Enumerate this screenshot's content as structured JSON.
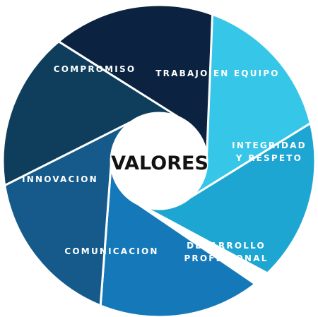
{
  "diagram": {
    "center_title": "VALORES",
    "segments": [
      {
        "id": "trabajo",
        "lines": [
          "TRABAJO EN EQUIPO"
        ],
        "color": "#36c6e8"
      },
      {
        "id": "integridad",
        "lines": [
          "INTEGRIDAD",
          "Y RESPETO"
        ],
        "color": "#1ea6d3"
      },
      {
        "id": "desarrollo",
        "lines": [
          "DESARROLLO",
          "PROFESIONAL"
        ],
        "color": "#1579b9"
      },
      {
        "id": "comunicacion",
        "lines": [
          "COMUNICACION"
        ],
        "color": "#155a8a"
      },
      {
        "id": "innovacion",
        "lines": [
          "INNOVACION"
        ],
        "color": "#0f3e5c"
      },
      {
        "id": "compromiso",
        "lines": [
          "COMPROMISO"
        ],
        "color": "#0b2340"
      }
    ]
  }
}
